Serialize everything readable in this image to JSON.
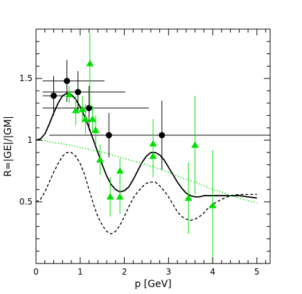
{
  "chart_data": {
    "type": "scatter",
    "xlabel": "p [GeV]",
    "ylabel": "R=|GE|/|GM|",
    "xlim": [
      0,
      5.3
    ],
    "ylim": [
      0,
      1.9
    ],
    "x_ticks": [
      0,
      1,
      2,
      3,
      4,
      5
    ],
    "x_tick_labels": [
      "0",
      "1",
      "2",
      "3",
      "4",
      "5"
    ],
    "y_ticks": [
      0.5,
      1,
      1.5
    ],
    "y_tick_labels": [
      "0.5",
      "1",
      "1.5"
    ],
    "grid": false,
    "legend": "none",
    "series": [
      {
        "marker": "circle",
        "color": "#000000",
        "points": [
          {
            "x": 0.4,
            "y": 1.36,
            "xlo": 0.15,
            "xhi": 0.65,
            "ylo": 1.2,
            "yhi": 1.52
          },
          {
            "x": 0.7,
            "y": 1.48,
            "xlo": 0.15,
            "xhi": 1.55,
            "ylo": 1.31,
            "yhi": 1.65
          },
          {
            "x": 0.95,
            "y": 1.39,
            "xlo": 0.15,
            "xhi": 2.02,
            "ylo": 1.22,
            "yhi": 1.56
          },
          {
            "x": 1.2,
            "y": 1.26,
            "xlo": 0.15,
            "xhi": 2.55,
            "ylo": 1.08,
            "yhi": 1.44
          },
          {
            "x": 1.65,
            "y": 1.04,
            "xlo": 0.3,
            "xhi": 5.3,
            "ylo": 0.86,
            "yhi": 1.22
          },
          {
            "x": 2.85,
            "y": 1.04,
            "xlo": 0.3,
            "xhi": 5.3,
            "ylo": 0.76,
            "yhi": 1.32
          }
        ]
      },
      {
        "marker": "triangle",
        "color": "#00e000",
        "points": [
          {
            "x": 0.75,
            "y": 1.37,
            "ylo": 1.3,
            "yhi": 1.44
          },
          {
            "x": 0.9,
            "y": 1.24,
            "ylo": 1.12,
            "yhi": 1.36
          },
          {
            "x": 1.05,
            "y": 1.25,
            "ylo": 1.14,
            "yhi": 1.36
          },
          {
            "x": 1.12,
            "y": 1.17,
            "ylo": 1.05,
            "yhi": 1.29
          },
          {
            "x": 1.22,
            "y": 1.62,
            "ylo": 1.27,
            "yhi": 1.87
          },
          {
            "x": 1.28,
            "y": 1.17,
            "ylo": 1.06,
            "yhi": 1.28
          },
          {
            "x": 1.35,
            "y": 1.08,
            "ylo": 0.96,
            "yhi": 1.2
          },
          {
            "x": 1.45,
            "y": 0.84,
            "ylo": 0.72,
            "yhi": 0.96
          },
          {
            "x": 1.68,
            "y": 0.54,
            "ylo": 0.38,
            "yhi": 0.7
          },
          {
            "x": 1.9,
            "y": 0.54,
            "ylo": 0.4,
            "yhi": 0.68
          },
          {
            "x": 1.9,
            "y": 0.75,
            "ylo": 0.65,
            "yhi": 0.85
          },
          {
            "x": 2.65,
            "y": 0.97,
            "ylo": 0.77,
            "yhi": 1.17
          },
          {
            "x": 2.65,
            "y": 0.87,
            "ylo": 0.7,
            "yhi": 1.04
          },
          {
            "x": 3.45,
            "y": 0.53,
            "ylo": 0.24,
            "yhi": 0.82
          },
          {
            "x": 3.6,
            "y": 0.96,
            "ylo": 0.56,
            "yhi": 1.36
          },
          {
            "x": 4.0,
            "y": 0.47,
            "ylo": 0.0,
            "yhi": 0.92
          }
        ]
      }
    ],
    "curves": [
      {
        "style": "solid",
        "color": "#000000",
        "x": [
          0.0,
          0.1,
          0.2,
          0.3,
          0.4,
          0.5,
          0.6,
          0.7,
          0.8,
          0.9,
          1.0,
          1.1,
          1.2,
          1.3,
          1.4,
          1.5,
          1.6,
          1.7,
          1.8,
          1.9,
          2.0,
          2.1,
          2.2,
          2.3,
          2.4,
          2.5,
          2.6,
          2.7,
          2.8,
          2.9,
          3.0,
          3.1,
          3.2,
          3.3,
          3.4,
          3.5,
          3.6,
          3.7,
          3.8,
          3.9,
          4.0,
          4.2,
          4.4,
          4.6,
          4.8,
          5.0
        ],
        "y": [
          1.0,
          1.01,
          1.05,
          1.13,
          1.22,
          1.3,
          1.36,
          1.38,
          1.37,
          1.33,
          1.27,
          1.19,
          1.1,
          1.0,
          0.9,
          0.8,
          0.71,
          0.64,
          0.6,
          0.58,
          0.59,
          0.62,
          0.68,
          0.75,
          0.82,
          0.87,
          0.9,
          0.9,
          0.88,
          0.84,
          0.78,
          0.72,
          0.66,
          0.61,
          0.57,
          0.55,
          0.54,
          0.54,
          0.55,
          0.55,
          0.55,
          0.55,
          0.55,
          0.55,
          0.54,
          0.53
        ]
      },
      {
        "style": "dashed",
        "color": "#000000",
        "x": [
          0.0,
          0.1,
          0.2,
          0.3,
          0.4,
          0.5,
          0.6,
          0.7,
          0.8,
          0.9,
          1.0,
          1.1,
          1.2,
          1.3,
          1.4,
          1.5,
          1.6,
          1.7,
          1.8,
          1.9,
          2.0,
          2.1,
          2.2,
          2.3,
          2.4,
          2.5,
          2.6,
          2.7,
          2.8,
          2.9,
          3.0,
          3.1,
          3.2,
          3.3,
          3.4,
          3.5,
          3.6,
          3.7,
          3.8,
          3.9,
          4.0,
          4.2,
          4.4,
          4.6,
          4.8,
          5.0
        ],
        "y": [
          0.5,
          0.52,
          0.58,
          0.66,
          0.74,
          0.81,
          0.87,
          0.9,
          0.9,
          0.87,
          0.81,
          0.72,
          0.6,
          0.48,
          0.38,
          0.31,
          0.26,
          0.24,
          0.26,
          0.31,
          0.38,
          0.46,
          0.53,
          0.58,
          0.62,
          0.65,
          0.66,
          0.66,
          0.63,
          0.59,
          0.54,
          0.48,
          0.42,
          0.38,
          0.36,
          0.35,
          0.36,
          0.38,
          0.41,
          0.45,
          0.48,
          0.52,
          0.55,
          0.56,
          0.56,
          0.56
        ]
      },
      {
        "style": "dotted",
        "color": "#00e000",
        "x": [
          0.0,
          0.2,
          0.4,
          0.6,
          0.8,
          1.0,
          1.2,
          1.4,
          1.6,
          1.8,
          2.0,
          2.2,
          2.4,
          2.6,
          2.8,
          3.0,
          3.2,
          3.4,
          3.6,
          3.8,
          4.0,
          4.2,
          4.4,
          4.6,
          4.8,
          5.0
        ],
        "y": [
          1.0,
          0.995,
          0.98,
          0.97,
          0.955,
          0.94,
          0.925,
          0.91,
          0.895,
          0.87,
          0.85,
          0.83,
          0.81,
          0.79,
          0.765,
          0.74,
          0.71,
          0.68,
          0.66,
          0.63,
          0.6,
          0.58,
          0.55,
          0.53,
          0.51,
          0.49
        ]
      }
    ]
  }
}
